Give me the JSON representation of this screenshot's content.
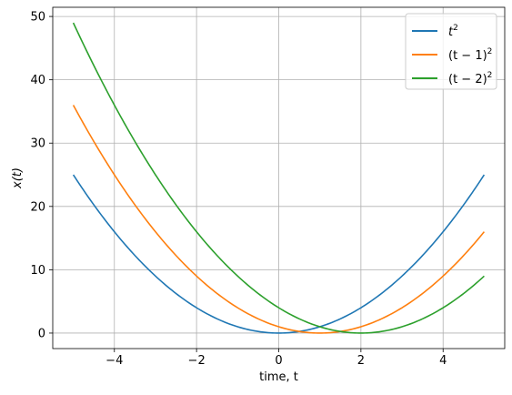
{
  "chart_data": {
    "type": "line",
    "xlabel": "time, t",
    "ylabel": "x(t)",
    "xlim": [
      -5.5,
      5.5
    ],
    "ylim": [
      -2.45,
      51.45
    ],
    "xticks": [
      -4,
      -2,
      0,
      2,
      4
    ],
    "yticks": [
      0,
      10,
      20,
      30,
      40,
      50
    ],
    "grid": true,
    "legend_position": "top-right",
    "x": [
      -5,
      -4.5,
      -4,
      -3.5,
      -3,
      -2.5,
      -2,
      -1.5,
      -1,
      -0.5,
      0,
      0.5,
      1,
      1.5,
      2,
      2.5,
      3,
      3.5,
      4,
      4.5,
      5
    ],
    "series": [
      {
        "name": "t²",
        "name_base": "t",
        "name_sup": "2",
        "color": "#1f77b4",
        "values": [
          25,
          20.25,
          16,
          12.25,
          9,
          6.25,
          4,
          2.25,
          1,
          0.25,
          0,
          0.25,
          1,
          2.25,
          4,
          6.25,
          9,
          12.25,
          16,
          20.25,
          25
        ]
      },
      {
        "name": "(t − 1)²",
        "name_base": "(t − 1)",
        "name_sup": "2",
        "color": "#ff7f0e",
        "values": [
          36,
          30.25,
          25,
          20.25,
          16,
          12.25,
          9,
          6.25,
          4,
          2.25,
          1,
          0.25,
          0,
          0.25,
          1,
          2.25,
          4,
          6.25,
          9,
          12.25,
          16
        ]
      },
      {
        "name": "(t − 2)²",
        "name_base": "(t − 2)",
        "name_sup": "2",
        "color": "#2ca02c",
        "values": [
          49,
          42.25,
          36,
          30.25,
          25,
          20.25,
          16,
          12.25,
          9,
          6.25,
          4,
          2.25,
          1,
          0.25,
          0,
          0.25,
          1,
          2.25,
          4,
          6.25,
          9
        ]
      }
    ]
  }
}
